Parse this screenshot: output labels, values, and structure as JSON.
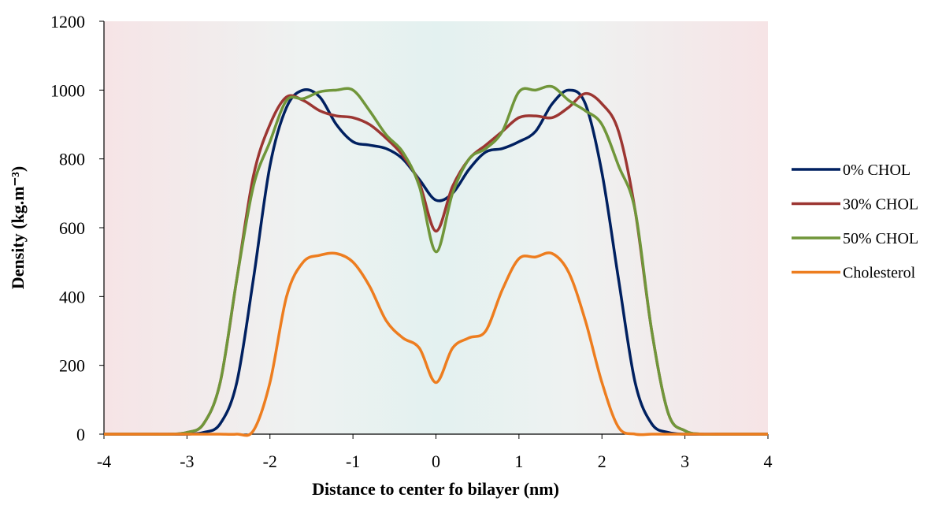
{
  "chart_data": {
    "type": "line",
    "x_label": "Distance to center fo bilayer (nm)",
    "y_label": "Density (kg.m⁻³)",
    "x": [
      -4,
      -3.8,
      -3.6,
      -3.4,
      -3.2,
      -3,
      -2.8,
      -2.6,
      -2.4,
      -2.2,
      -2,
      -1.8,
      -1.6,
      -1.4,
      -1.2,
      -1,
      -0.8,
      -0.6,
      -0.4,
      -0.2,
      0,
      0.2,
      0.4,
      0.6,
      0.8,
      1,
      1.2,
      1.4,
      1.6,
      1.8,
      2,
      2.2,
      2.4,
      2.6,
      2.8,
      3,
      3.2,
      3.4,
      3.6,
      3.8,
      4
    ],
    "series": [
      {
        "name": "0% CHOL",
        "color": "#002060",
        "values": [
          0,
          0,
          0,
          0,
          0,
          0,
          5,
          30,
          150,
          450,
          780,
          950,
          1000,
          980,
          900,
          850,
          840,
          830,
          800,
          740,
          680,
          700,
          770,
          820,
          830,
          850,
          880,
          960,
          1000,
          960,
          760,
          450,
          150,
          30,
          5,
          0,
          0,
          0,
          0,
          0,
          0
        ]
      },
      {
        "name": "30% CHOL",
        "color": "#9c3632",
        "values": [
          0,
          0,
          0,
          0,
          0,
          5,
          30,
          150,
          450,
          750,
          900,
          980,
          970,
          940,
          925,
          920,
          900,
          860,
          810,
          730,
          590,
          720,
          800,
          840,
          880,
          920,
          925,
          920,
          950,
          990,
          960,
          880,
          650,
          300,
          60,
          10,
          0,
          0,
          0,
          0,
          0
        ]
      },
      {
        "name": "50% CHOL",
        "color": "#70963a",
        "values": [
          0,
          0,
          0,
          0,
          0,
          5,
          30,
          150,
          450,
          720,
          850,
          970,
          975,
          995,
          1000,
          1000,
          940,
          870,
          820,
          720,
          530,
          700,
          800,
          830,
          880,
          995,
          1000,
          1010,
          970,
          940,
          900,
          780,
          650,
          300,
          60,
          10,
          0,
          0,
          0,
          0,
          0
        ]
      },
      {
        "name": "Cholesterol",
        "color": "#ed7d1f",
        "values": [
          0,
          0,
          0,
          0,
          0,
          0,
          0,
          0,
          0,
          10,
          150,
          400,
          500,
          520,
          525,
          500,
          430,
          330,
          280,
          250,
          150,
          250,
          280,
          300,
          420,
          510,
          515,
          525,
          470,
          330,
          150,
          20,
          0,
          0,
          0,
          0,
          0,
          0,
          0,
          0,
          0
        ]
      }
    ],
    "xlim": [
      -4,
      4
    ],
    "xticks": [
      -4,
      -3,
      -2,
      -1,
      0,
      1,
      2,
      3,
      4
    ],
    "ylim": [
      0,
      1200
    ],
    "yticks": [
      0,
      200,
      400,
      600,
      800,
      1000,
      1200
    ],
    "grid": false,
    "legend": "right"
  }
}
